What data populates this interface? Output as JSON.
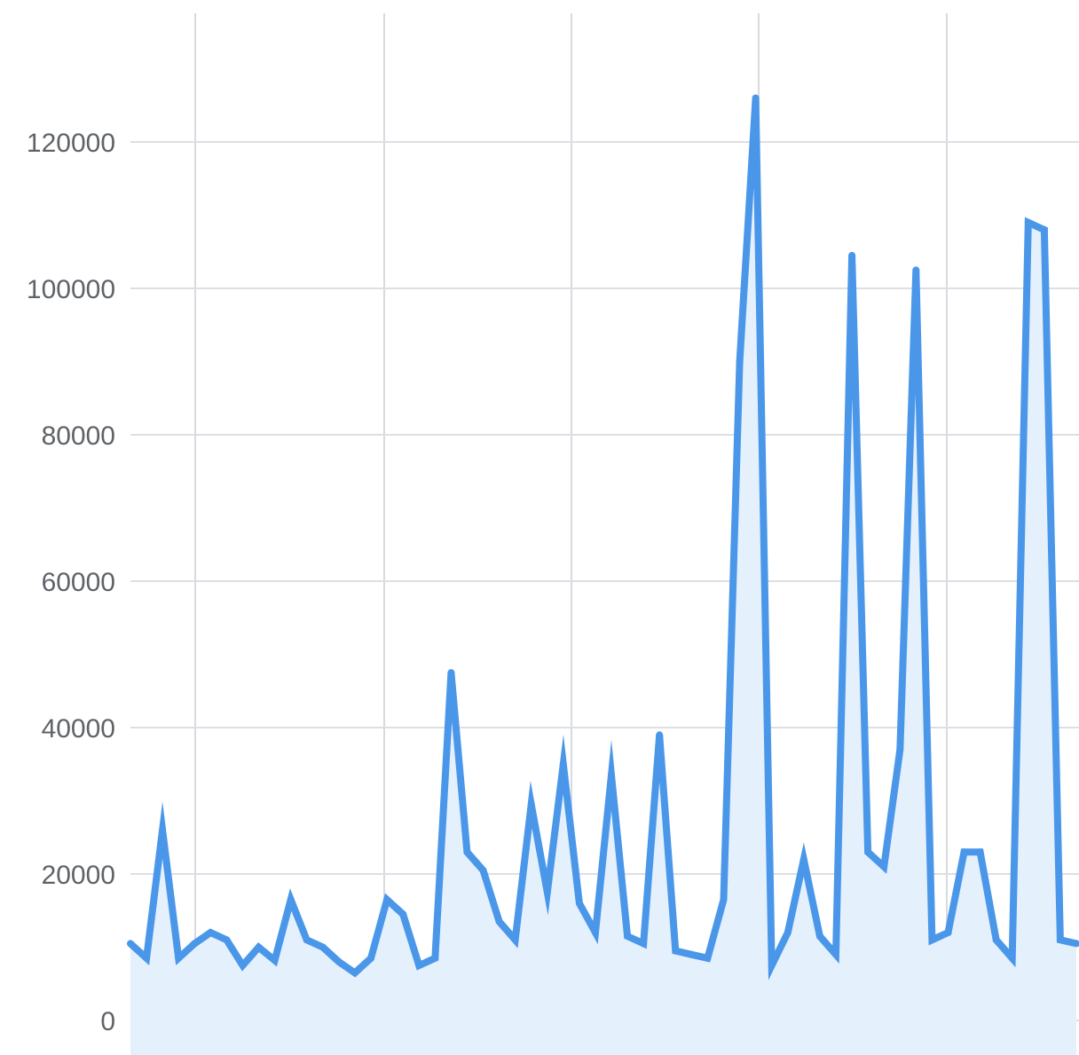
{
  "chart_data": {
    "type": "area",
    "title": "",
    "xlabel": "",
    "ylabel": "",
    "ylim": [
      0,
      130000
    ],
    "yticks": [
      0,
      20000,
      40000,
      60000,
      80000,
      100000,
      120000
    ],
    "ytick_labels": [
      "0",
      "20000",
      "40000",
      "60000",
      "80000",
      "100000",
      "120000"
    ],
    "grid": true,
    "vertical_gridlines": 5,
    "legend": "none",
    "colors": {
      "line": "#4a97ea",
      "fill": "#e5f0fd",
      "grid": "#dcdfe4",
      "tick_text": "#5f6368"
    },
    "series": [
      {
        "values": [
          10500,
          8500,
          26000,
          8500,
          10500,
          12000,
          11000,
          7500,
          10000,
          8200,
          16500,
          11000,
          10000,
          8000,
          6500,
          8500,
          16500,
          14500,
          7500,
          8500,
          47500,
          23000,
          20500,
          13500,
          11000,
          29500,
          17500,
          35000,
          16000,
          12000,
          33500,
          11500,
          10500,
          39000,
          9500,
          9000,
          8500,
          16500,
          90000,
          126000,
          7500,
          12000,
          22000,
          11500,
          9000,
          104500,
          23000,
          21000,
          37000,
          102500,
          11000,
          12000,
          23000,
          23000,
          11000,
          8500,
          109000,
          108000,
          11000,
          10500
        ]
      }
    ]
  }
}
